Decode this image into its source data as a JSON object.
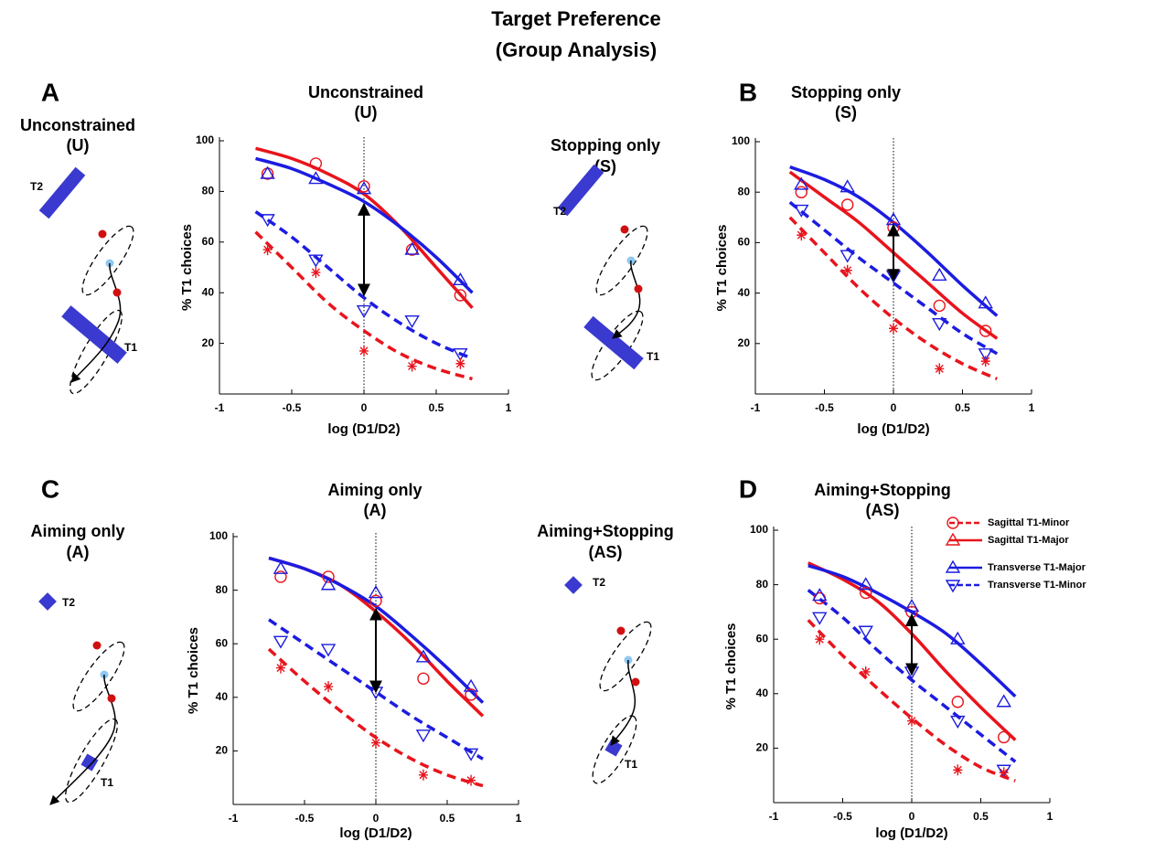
{
  "title": [
    "Target Preference",
    "(Group Analysis)"
  ],
  "panels": [
    {
      "letter": "A",
      "diagram_title": [
        "Unconstrained",
        "(U)"
      ],
      "t1": "T1",
      "t2": "T2"
    },
    {
      "letter": "B",
      "diagram_title": [
        "Stopping only",
        "(S)"
      ],
      "t1": "T1",
      "t2": "T2"
    },
    {
      "letter": "C",
      "diagram_title": [
        "Aiming only",
        "(A)"
      ],
      "t1": "T1",
      "t2": "T2"
    },
    {
      "letter": "D",
      "diagram_title": [
        "Aiming+Stopping",
        "(AS)"
      ],
      "t1": "T1",
      "t2": "T2"
    }
  ],
  "chart_data": [
    {
      "type": "line",
      "title": "Unconstrained",
      "subtitle": "(U)",
      "xlabel": "log (D1/D2)",
      "ylabel": "% T1 choices",
      "xlim": [
        -1,
        1
      ],
      "xticks": [
        -1,
        -0.5,
        0,
        0.5,
        1
      ],
      "ylim": [
        0,
        100
      ],
      "yticks": [
        20,
        40,
        60,
        80,
        100
      ],
      "fit_x": [
        -0.75,
        -0.5,
        -0.25,
        0,
        0.25,
        0.5,
        0.75
      ],
      "marker_x": [
        -0.667,
        -0.333,
        0,
        0.333,
        0.667
      ],
      "series": [
        {
          "color": "#e8141c",
          "dash": false,
          "values": [
            97,
            93,
            87,
            79,
            66,
            50,
            34
          ]
        },
        {
          "color": "#1c1ce0",
          "dash": false,
          "values": [
            93,
            89,
            83,
            76,
            66,
            54,
            40
          ]
        },
        {
          "color": "#1c1ce0",
          "dash": true,
          "values": [
            72,
            62,
            50,
            38,
            28,
            20,
            14
          ]
        },
        {
          "color": "#e8141c",
          "dash": true,
          "values": [
            64,
            50,
            36,
            25,
            16,
            10,
            6
          ]
        }
      ],
      "markers": [
        {
          "color": "#e8141c",
          "marker": "circle",
          "values": [
            87,
            91,
            82,
            57,
            39
          ]
        },
        {
          "color": "#1c1ce0",
          "marker": "triangle-up",
          "values": [
            87,
            85,
            81,
            57,
            45
          ]
        },
        {
          "color": "#1c1ce0",
          "marker": "triangle-down",
          "values": [
            69,
            53,
            33,
            29,
            16
          ]
        },
        {
          "color": "#e8141c",
          "marker": "asterisk",
          "values": [
            57,
            48,
            17,
            11,
            12
          ]
        }
      ],
      "arrow": [
        75,
        39
      ]
    },
    {
      "type": "line",
      "title": "Stopping only",
      "subtitle": "(S)",
      "xlabel": "log (D1/D2)",
      "ylabel": "% T1 choices",
      "xlim": [
        -1,
        1
      ],
      "xticks": [
        -1,
        -0.5,
        0,
        0.5,
        1
      ],
      "ylim": [
        0,
        100
      ],
      "yticks": [
        20,
        40,
        60,
        80,
        100
      ],
      "fit_x": [
        -0.75,
        -0.5,
        -0.25,
        0,
        0.25,
        0.5,
        0.75
      ],
      "marker_x": [
        -0.667,
        -0.333,
        0,
        0.333,
        0.667
      ],
      "series": [
        {
          "color": "#e8141c",
          "dash": false,
          "values": [
            88,
            78,
            68,
            56,
            44,
            32,
            22
          ]
        },
        {
          "color": "#1c1ce0",
          "dash": false,
          "values": [
            90,
            85,
            78,
            68,
            56,
            43,
            31
          ]
        },
        {
          "color": "#1c1ce0",
          "dash": true,
          "values": [
            76,
            65,
            54,
            44,
            34,
            24,
            16
          ]
        },
        {
          "color": "#e8141c",
          "dash": true,
          "values": [
            70,
            56,
            42,
            30,
            20,
            12,
            6
          ]
        }
      ],
      "markers": [
        {
          "color": "#e8141c",
          "marker": "circle",
          "values": [
            80,
            75,
            66,
            35,
            25
          ]
        },
        {
          "color": "#1c1ce0",
          "marker": "triangle-up",
          "values": [
            83,
            82,
            69,
            47,
            36
          ]
        },
        {
          "color": "#1c1ce0",
          "marker": "triangle-down",
          "values": [
            73,
            55,
            47,
            28,
            16
          ]
        },
        {
          "color": "#e8141c",
          "marker": "asterisk",
          "values": [
            63,
            49,
            26,
            10,
            13
          ]
        }
      ],
      "arrow": [
        67,
        45
      ]
    },
    {
      "type": "line",
      "title": "Aiming only",
      "subtitle": "(A)",
      "xlabel": "log (D1/D2)",
      "ylabel": "% T1 choices",
      "xlim": [
        -1,
        1
      ],
      "xticks": [
        -1,
        -0.5,
        0,
        0.5,
        1
      ],
      "ylim": [
        0,
        100
      ],
      "yticks": [
        20,
        40,
        60,
        80,
        100
      ],
      "fit_x": [
        -0.75,
        -0.5,
        -0.25,
        0,
        0.25,
        0.5,
        0.75
      ],
      "marker_x": [
        -0.667,
        -0.333,
        0,
        0.333,
        0.667
      ],
      "series": [
        {
          "color": "#e8141c",
          "dash": false,
          "values": [
            92,
            88,
            82,
            72,
            60,
            46,
            33
          ]
        },
        {
          "color": "#1c1ce0",
          "dash": false,
          "values": [
            92,
            88,
            82,
            74,
            63,
            51,
            38
          ]
        },
        {
          "color": "#1c1ce0",
          "dash": true,
          "values": [
            69,
            60,
            51,
            42,
            33,
            25,
            17
          ]
        },
        {
          "color": "#e8141c",
          "dash": true,
          "values": [
            58,
            46,
            35,
            25,
            17,
            11,
            7
          ]
        }
      ],
      "markers": [
        {
          "color": "#e8141c",
          "marker": "circle",
          "values": [
            85,
            85,
            76,
            47,
            41
          ]
        },
        {
          "color": "#1c1ce0",
          "marker": "triangle-up",
          "values": [
            88,
            82,
            79,
            55,
            44
          ]
        },
        {
          "color": "#1c1ce0",
          "marker": "triangle-down",
          "values": [
            61,
            58,
            42,
            26,
            19
          ]
        },
        {
          "color": "#e8141c",
          "marker": "asterisk",
          "values": [
            51,
            44,
            23,
            11,
            9
          ]
        }
      ],
      "arrow": [
        73,
        42
      ]
    },
    {
      "type": "line",
      "title": "Aiming+Stopping",
      "subtitle": "(AS)",
      "xlabel": "log (D1/D2)",
      "ylabel": "% T1 choices",
      "xlim": [
        -1,
        1
      ],
      "xticks": [
        -1,
        -0.5,
        0,
        0.5,
        1
      ],
      "ylim": [
        0,
        100
      ],
      "yticks": [
        20,
        40,
        60,
        80,
        100
      ],
      "fit_x": [
        -0.75,
        -0.5,
        -0.25,
        0,
        0.25,
        0.5,
        0.75
      ],
      "marker_x": [
        -0.667,
        -0.333,
        0,
        0.333,
        0.667
      ],
      "series": [
        {
          "color": "#e8141c",
          "dash": false,
          "values": [
            88,
            82,
            74,
            62,
            48,
            35,
            23
          ]
        },
        {
          "color": "#1c1ce0",
          "dash": false,
          "values": [
            87,
            83,
            77,
            70,
            62,
            51,
            39
          ]
        },
        {
          "color": "#1c1ce0",
          "dash": true,
          "values": [
            78,
            68,
            56,
            45,
            35,
            25,
            15
          ]
        },
        {
          "color": "#e8141c",
          "dash": true,
          "values": [
            67,
            54,
            42,
            31,
            21,
            13,
            8
          ]
        }
      ],
      "markers": [
        {
          "color": "#e8141c",
          "marker": "circle",
          "values": [
            75,
            77,
            70,
            37,
            24
          ]
        },
        {
          "color": "#1c1ce0",
          "marker": "triangle-up",
          "values": [
            76,
            80,
            72,
            60,
            37
          ]
        },
        {
          "color": "#1c1ce0",
          "marker": "triangle-down",
          "values": [
            68,
            63,
            48,
            30,
            12
          ]
        },
        {
          "color": "#e8141c",
          "marker": "asterisk",
          "values": [
            60,
            48,
            30,
            12,
            11
          ]
        }
      ],
      "arrow": [
        47,
        69
      ],
      "legend": [
        {
          "name": "Sagittal T1-Minor",
          "color": "#e8141c",
          "dash": true,
          "marker": "circle"
        },
        {
          "name": "Sagittal T1-Major",
          "color": "#e8141c",
          "dash": false,
          "marker": "triangle-up"
        },
        {
          "name": "Transverse T1-Major",
          "color": "#1c1ce0",
          "dash": false,
          "marker": "triangle-up"
        },
        {
          "name": "Transverse T1-Minor",
          "color": "#1c1ce0",
          "dash": true,
          "marker": "triangle-down"
        }
      ]
    }
  ]
}
